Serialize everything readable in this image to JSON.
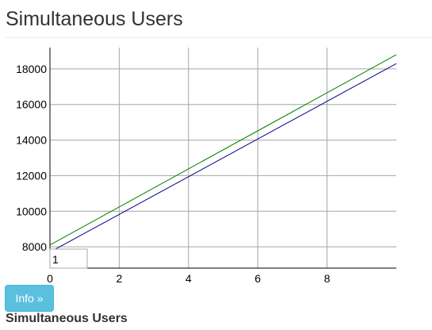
{
  "page": {
    "title": "Simultaneous Users"
  },
  "chart_data": {
    "type": "line",
    "title": "",
    "xlabel": "",
    "ylabel": "",
    "x_ticks": [
      0,
      2,
      4,
      6,
      8
    ],
    "y_ticks": [
      8000,
      10000,
      12000,
      14000,
      16000,
      18000
    ],
    "xlim": [
      0,
      10
    ],
    "ylim": [
      6800,
      19200
    ],
    "grid": true,
    "legend": "none",
    "series": [
      {
        "color": "#008000",
        "x": [
          0,
          10
        ],
        "y": [
          8100,
          18800
        ]
      },
      {
        "color": "#00008b",
        "x": [
          0,
          10
        ],
        "y": [
          7700,
          18300
        ]
      }
    ],
    "overlay_box_value": "1"
  },
  "controls": {
    "info_button": "Info »"
  },
  "section": {
    "label": "Simultaneous Users"
  }
}
